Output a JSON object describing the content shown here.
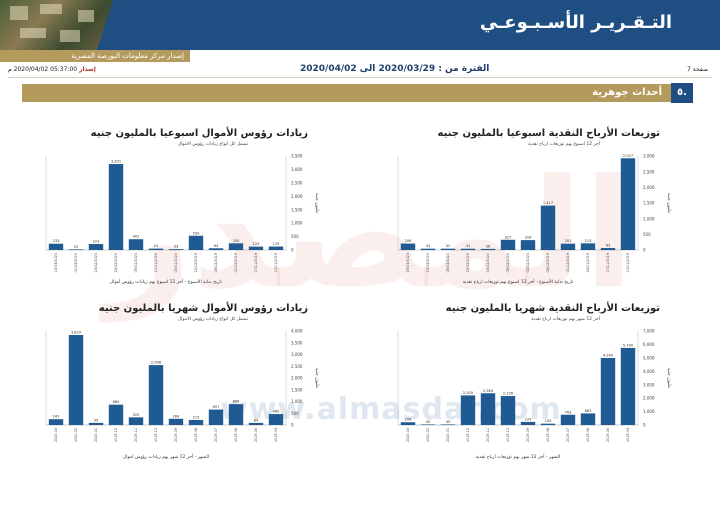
{
  "header": {
    "title": "التـقـريـر الأسـبـوعـي",
    "subtitle": "إصدار مركز معلومات البورصة المصرية"
  },
  "meta": {
    "issue_label": "إصدار",
    "issue_value": "05:37:00 2020/04/02 م",
    "period": "الفترة من : 2020/03/29 الى 2020/04/02",
    "page": "صفحة 7"
  },
  "section": {
    "number": "٥.",
    "title": "أحداث جوهرية"
  },
  "watermark": {
    "word": "المصدر",
    "url": "www.almasdar.com"
  },
  "colors": {
    "bar": "#1f5a93",
    "accent_gold": "#b59a5d",
    "accent_blue": "#1f4e82"
  },
  "charts": [
    {
      "title": "زيادات رؤوس الأموال اسبوعيا بالمليون جنيه",
      "subtitle": "تشمل كل انواع زيادات رؤوس الاموال",
      "xlabel": "تاريخ بداية الأسبوع - أخر 12 اسبوع بهم زيادات رؤوس أموال",
      "ylabel": "مليون جنيه"
    },
    {
      "title": "توزيعات الأرباح النقدية اسبوعيا بالمليون جنيه",
      "subtitle": "أخر 12 اسبوع بهم توزيعات ارباح نقدية",
      "xlabel": "تاريخ بداية الأسبوع - أخر 12 اسبوع بهم توزيعات ارباح نقدية",
      "ylabel": "مليون جنيه"
    },
    {
      "title": "زيادات رؤوس الأموال شهريا بالمليون جنيه",
      "subtitle": "تشمل كل انواع زيادات رؤوس الاموال",
      "xlabel": "الشهر - أخر 12 شهر بهم زيادات رؤوس اموال",
      "ylabel": "مليون جنيه"
    },
    {
      "title": "توزيعات الأرباح النقدية شهريا بالمليون جنيه",
      "subtitle": "أخر 12 شهر بهم توزيعات ارباح نقدية",
      "xlabel": "الشهر - أخر 12 شهر بهم توزيعات ارباح نقدية",
      "ylabel": "مليون جنيه"
    }
  ],
  "chart_data": [
    {
      "type": "bar",
      "title": "زيادات رؤوس الأموال اسبوعيا بالمليون جنيه",
      "categories": [
        "15/03/2020",
        "01/03/2020",
        "23/02/2020",
        "16/02/2020",
        "09/02/2020",
        "12/01/2020",
        "05/01/2020",
        "15/12/2019",
        "08/12/2019",
        "01/12/2019",
        "17/11/2019",
        "10/11/2019"
      ],
      "values": [
        233,
        25,
        223,
        3201,
        402,
        51,
        33,
        530,
        64,
        250,
        125,
        129
      ],
      "ylim": [
        0,
        3500
      ],
      "yticks": [
        0,
        500,
        1000,
        1500,
        2000,
        2500,
        3000,
        3500
      ],
      "ytick_labels": [
        "0",
        "500",
        "1,000",
        "1,500",
        "2,000",
        "2,500",
        "3,000",
        "3,500"
      ],
      "value_labels": [
        "233",
        "25",
        "223",
        "3,201",
        "402",
        "51",
        "33",
        "530",
        "64",
        "250",
        "125",
        "129"
      ]
    },
    {
      "type": "bar",
      "title": "توزيعات الأرباح النقدية اسبوعيا بالمليون جنيه",
      "categories": [
        "29/03/2020",
        "15/03/2020",
        "08/03/2020",
        "23/02/2020",
        "16/02/2020",
        "09/02/2020",
        "02/02/2020",
        "08/12/2019",
        "01/12/2019",
        "24/11/2019",
        "17/11/2019",
        "10/11/2019"
      ],
      "values": [
        206,
        41,
        42,
        41,
        36,
        327,
        316,
        1417,
        201,
        213,
        63,
        2927
      ],
      "ylim": [
        0,
        3000
      ],
      "yticks": [
        0,
        500,
        1000,
        1500,
        2000,
        2500,
        3000
      ],
      "ytick_labels": [
        "0",
        "500",
        "1,000",
        "1,500",
        "2,000",
        "2,500",
        "3,000"
      ],
      "value_labels": [
        "206",
        "41",
        "42",
        "41",
        "36",
        "327",
        "316",
        "1,417",
        "201",
        "213",
        "63",
        "2,927"
      ]
    },
    {
      "type": "bar",
      "title": "زيادات رؤوس الأموال شهريا بالمليون جنيه",
      "categories": [
        "2020-03",
        "2020-02",
        "2020-01",
        "2019-12",
        "2019-11",
        "2019-10",
        "2019-09",
        "2019-08",
        "2019-07",
        "2019-06",
        "2019-05",
        "2019-04"
      ],
      "values": [
        247,
        3829,
        90,
        865,
        325,
        2548,
        264,
        215,
        657,
        888,
        89,
        465
      ],
      "ylim": [
        0,
        4000
      ],
      "yticks": [
        0,
        500,
        1000,
        1500,
        2000,
        2500,
        3000,
        3500,
        4000
      ],
      "ytick_labels": [
        "0",
        "500",
        "1,000",
        "1,500",
        "2,000",
        "2,500",
        "3,000",
        "3,500",
        "4,000"
      ],
      "value_labels": [
        "247",
        "3,829",
        "90",
        "865",
        "325",
        "2,548",
        "264",
        "215",
        "657",
        "888",
        "89",
        "465"
      ]
    },
    {
      "type": "bar",
      "title": "توزيعات الأرباح النقدية شهريا بالمليون جنيه",
      "categories": [
        "2020-03",
        "2020-02",
        "2020-01",
        "2019-12",
        "2019-11",
        "2019-10",
        "2019-09",
        "2019-08",
        "2019-07",
        "2019-06",
        "2019-05",
        "2019-04"
      ],
      "values": [
        206,
        42,
        45,
        2205,
        2364,
        2156,
        229,
        100,
        763,
        863,
        4990,
        5740
      ],
      "ylim": [
        0,
        7000
      ],
      "yticks": [
        0,
        1000,
        2000,
        3000,
        4000,
        5000,
        6000,
        7000
      ],
      "ytick_labels": [
        "0",
        "1,000",
        "2,000",
        "3,000",
        "4,000",
        "5,000",
        "6,000",
        "7,000"
      ],
      "value_labels": [
        "206",
        "42",
        "45",
        "2,205",
        "2,364",
        "2,156",
        "229",
        "100",
        "763",
        "863",
        "4,990",
        "5,740"
      ]
    }
  ]
}
